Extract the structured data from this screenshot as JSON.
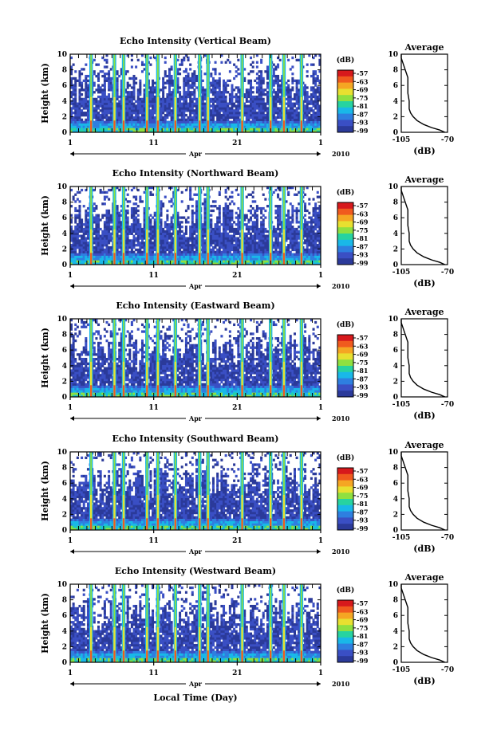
{
  "figure": {
    "xlabel": "Local Time (Day)",
    "month_label": "Apr",
    "year_label": "2010",
    "colorbar_unit": "(dB)",
    "avg_title": "Average",
    "avg_xlabel": "(dB)"
  },
  "colors": {
    "scale": [
      "#2b3a9a",
      "#3a4fc4",
      "#2e7fe0",
      "#19b8e8",
      "#27d3a0",
      "#8fe040",
      "#e8e030",
      "#f5a623",
      "#f05a1e",
      "#d7191c"
    ]
  },
  "chart_data": [
    {
      "type": "heatmap",
      "title": "Echo Intensity (Vertical Beam)",
      "ylabel": "Height (km)",
      "ylim": [
        0,
        10
      ],
      "yticks": [
        "0",
        "2",
        "4",
        "6",
        "8",
        "10"
      ],
      "xlim": [
        1,
        31
      ],
      "xticks": [
        "1",
        "11",
        "21",
        "1"
      ],
      "colorbar_ticks": [
        "-57",
        "-63",
        "-69",
        "-75",
        "-81",
        "-87",
        "-93",
        "-99"
      ],
      "spikes_day": [
        3.5,
        6.3,
        7.4,
        10.2,
        11.5,
        13.6,
        16.5,
        17.5,
        21.6,
        25.0,
        26.6,
        28.7
      ],
      "average_profile": {
        "xlim": [
          -105,
          -70
        ],
        "xticks": [
          "-105",
          "-70"
        ],
        "yticks": [
          "0",
          "2",
          "4",
          "6",
          "8",
          "10"
        ],
        "height_km": [
          0.0,
          0.3,
          0.6,
          1.0,
          1.5,
          2.0,
          2.5,
          3.0,
          4.0,
          5.0,
          6.0,
          7.0,
          8.0,
          8.5,
          9.0,
          9.5,
          10.0
        ],
        "db": [
          -72,
          -76,
          -82,
          -88,
          -93,
          -96,
          -98,
          -99,
          -99,
          -100,
          -100,
          -100,
          -102,
          -103,
          -104,
          -105,
          -105
        ]
      }
    },
    {
      "type": "heatmap",
      "title": "Echo Intensity (Northward Beam)",
      "ylabel": "Height (km)",
      "ylim": [
        0,
        10
      ],
      "yticks": [
        "0",
        "2",
        "4",
        "6",
        "8",
        "10"
      ],
      "xlim": [
        1,
        31
      ],
      "xticks": [
        "1",
        "11",
        "21",
        "1"
      ],
      "colorbar_ticks": [
        "-57",
        "-63",
        "-69",
        "-75",
        "-81",
        "-87",
        "-93",
        "-99"
      ],
      "spikes_day": [
        3.5,
        6.3,
        7.4,
        10.2,
        11.5,
        13.6,
        16.5,
        17.5,
        21.6,
        25.0,
        26.6,
        28.7
      ],
      "average_profile": {
        "xlim": [
          -105,
          -70
        ],
        "xticks": [
          "-105",
          "-70"
        ],
        "yticks": [
          "0",
          "2",
          "4",
          "6",
          "8",
          "10"
        ],
        "height_km": [
          0.0,
          0.3,
          0.6,
          1.0,
          1.5,
          2.0,
          2.5,
          3.0,
          4.0,
          5.0,
          6.0,
          7.0,
          8.0,
          8.5,
          9.0,
          9.5,
          10.0
        ],
        "db": [
          -72,
          -76,
          -82,
          -88,
          -93,
          -96,
          -98,
          -99,
          -99,
          -100,
          -100,
          -100,
          -102,
          -103,
          -104,
          -105,
          -105
        ]
      }
    },
    {
      "type": "heatmap",
      "title": "Echo Intensity (Eastward Beam)",
      "ylabel": "Height (km)",
      "ylim": [
        0,
        10
      ],
      "yticks": [
        "0",
        "2",
        "4",
        "6",
        "8",
        "10"
      ],
      "xlim": [
        1,
        31
      ],
      "xticks": [
        "1",
        "11",
        "21",
        "1"
      ],
      "colorbar_ticks": [
        "-57",
        "-63",
        "-69",
        "-75",
        "-81",
        "-87",
        "-93",
        "-99"
      ],
      "spikes_day": [
        3.5,
        6.3,
        7.4,
        10.2,
        11.5,
        13.6,
        16.5,
        17.5,
        21.6,
        25.0,
        26.6,
        28.7
      ],
      "average_profile": {
        "xlim": [
          -105,
          -70
        ],
        "xticks": [
          "-105",
          "-70"
        ],
        "yticks": [
          "0",
          "2",
          "4",
          "6",
          "8",
          "10"
        ],
        "height_km": [
          0.0,
          0.3,
          0.6,
          1.0,
          1.5,
          2.0,
          2.5,
          3.0,
          4.0,
          5.0,
          6.0,
          7.0,
          8.0,
          8.5,
          9.0,
          9.5,
          10.0
        ],
        "db": [
          -72,
          -76,
          -82,
          -88,
          -93,
          -96,
          -98,
          -99,
          -99,
          -100,
          -100,
          -100,
          -102,
          -103,
          -104,
          -105,
          -105
        ]
      }
    },
    {
      "type": "heatmap",
      "title": "Echo Intensity (Southward Beam)",
      "ylabel": "Height (km)",
      "ylim": [
        0,
        10
      ],
      "yticks": [
        "0",
        "2",
        "4",
        "6",
        "8",
        "10"
      ],
      "xlim": [
        1,
        31
      ],
      "xticks": [
        "1",
        "11",
        "21",
        "1"
      ],
      "colorbar_ticks": [
        "-57",
        "-63",
        "-69",
        "-75",
        "-81",
        "-87",
        "-93",
        "-99"
      ],
      "spikes_day": [
        3.5,
        6.3,
        7.4,
        10.2,
        11.5,
        13.6,
        16.5,
        17.5,
        21.6,
        25.0,
        26.6,
        28.7
      ],
      "average_profile": {
        "xlim": [
          -105,
          -70
        ],
        "xticks": [
          "-105",
          "-70"
        ],
        "yticks": [
          "0",
          "2",
          "4",
          "6",
          "8",
          "10"
        ],
        "height_km": [
          0.0,
          0.3,
          0.6,
          1.0,
          1.5,
          2.0,
          2.5,
          3.0,
          4.0,
          5.0,
          6.0,
          7.0,
          8.0,
          8.5,
          9.0,
          9.5,
          10.0
        ],
        "db": [
          -72,
          -76,
          -82,
          -88,
          -93,
          -96,
          -98,
          -99,
          -99,
          -100,
          -100,
          -100,
          -102,
          -103,
          -104,
          -105,
          -105
        ]
      }
    },
    {
      "type": "heatmap",
      "title": "Echo Intensity (Westward Beam)",
      "ylabel": "Height (km)",
      "ylim": [
        0,
        10
      ],
      "yticks": [
        "0",
        "2",
        "4",
        "6",
        "8",
        "10"
      ],
      "xlim": [
        1,
        31
      ],
      "xticks": [
        "1",
        "11",
        "21",
        "1"
      ],
      "colorbar_ticks": [
        "-57",
        "-63",
        "-69",
        "-75",
        "-81",
        "-87",
        "-93",
        "-99"
      ],
      "spikes_day": [
        3.5,
        6.3,
        7.4,
        10.2,
        11.5,
        13.6,
        16.5,
        17.5,
        21.6,
        25.0,
        26.6,
        28.7
      ],
      "average_profile": {
        "xlim": [
          -105,
          -70
        ],
        "xticks": [
          "-105",
          "-70"
        ],
        "yticks": [
          "0",
          "2",
          "4",
          "6",
          "8",
          "10"
        ],
        "height_km": [
          0.0,
          0.3,
          0.6,
          1.0,
          1.5,
          2.0,
          2.5,
          3.0,
          4.0,
          5.0,
          6.0,
          7.0,
          8.0,
          8.5,
          9.0,
          9.5,
          10.0
        ],
        "db": [
          -72,
          -76,
          -82,
          -88,
          -93,
          -96,
          -98,
          -99,
          -99,
          -100,
          -100,
          -100,
          -102,
          -103,
          -104,
          -105,
          -105
        ]
      }
    }
  ]
}
